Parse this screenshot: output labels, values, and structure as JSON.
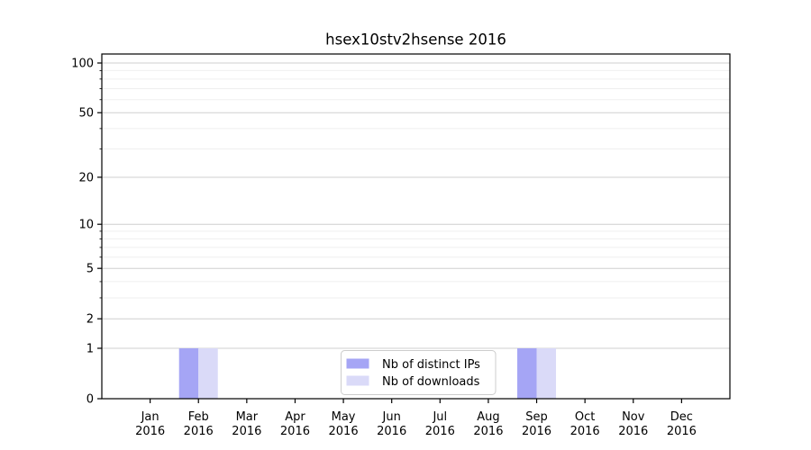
{
  "chart_data": {
    "type": "bar",
    "title": "hsex10stv2hsense 2016",
    "categories": [
      "Jan",
      "Feb",
      "Mar",
      "Apr",
      "May",
      "Jun",
      "Jul",
      "Aug",
      "Sep",
      "Oct",
      "Nov",
      "Dec"
    ],
    "category_year": "2016",
    "series": [
      {
        "name": "Nb of distinct IPs",
        "color": "#a5a5f5",
        "values": [
          0,
          1,
          0,
          0,
          0,
          0,
          0,
          0,
          1,
          0,
          0,
          0
        ]
      },
      {
        "name": "Nb of downloads",
        "color": "#dadaf8",
        "values": [
          0,
          1,
          0,
          0,
          0,
          0,
          0,
          0,
          1,
          0,
          0,
          0
        ]
      }
    ],
    "y_scale": "log10(value+1)",
    "ylim": [
      0,
      100
    ],
    "y_major_ticks": [
      0,
      1,
      2,
      5,
      10,
      20,
      50,
      100
    ],
    "y_minor_ticks": [
      3,
      4,
      6,
      7,
      8,
      9,
      30,
      40,
      60,
      70,
      80,
      90
    ],
    "grid": true,
    "legend_position": "lower center",
    "colors": {
      "background": "#ffffff",
      "axis": "#000000",
      "text": "#000000",
      "major_grid": "#cfcfcf",
      "minor_grid": "#efefef",
      "legend_border": "#cccccc",
      "legend_background": "#ffffff"
    }
  }
}
